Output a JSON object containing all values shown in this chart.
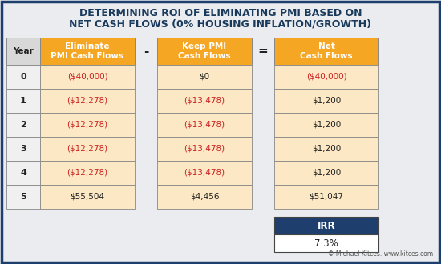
{
  "title_line1": "DETERMINING ROI OF ELIMINATING PMI BASED ON",
  "title_line2": "NET CASH FLOWS (0% HOUSING INFLATION/GROWTH)",
  "title_color": "#1a3a5c",
  "bg_color": "#eaecef",
  "white_bg": "#ffffff",
  "orange_header": "#f5a623",
  "orange_cell": "#fce8c4",
  "dark_blue": "#1e3f6e",
  "gray_header": "#d8d8d8",
  "gray_cell": "#f0f0f0",
  "red_text": "#cc2222",
  "black_text": "#222222",
  "border_color": "#888888",
  "years": [
    "0",
    "1",
    "2",
    "3",
    "4",
    "5"
  ],
  "eliminate_vals": [
    "($40,000)",
    "($12,278)",
    "($12,278)",
    "($12,278)",
    "($12,278)",
    "$55,504"
  ],
  "eliminate_red": [
    true,
    true,
    true,
    true,
    true,
    false
  ],
  "keep_vals": [
    "$0",
    "($13,478)",
    "($13,478)",
    "($13,478)",
    "($13,478)",
    "$4,456"
  ],
  "keep_red": [
    false,
    true,
    true,
    true,
    true,
    false
  ],
  "net_vals": [
    "($40,000)",
    "$1,200",
    "$1,200",
    "$1,200",
    "$1,200",
    "$51,047"
  ],
  "net_red": [
    true,
    false,
    false,
    false,
    false,
    false
  ],
  "irr_label": "IRR",
  "irr_value": "7.3%",
  "footer": "© Michael Kitces. www.kitces.com",
  "col1_header": "Eliminate\nPMI Cash Flows",
  "col2_header": "Keep PMI\nCash Flows",
  "col3_header": "Net\nCash Flows",
  "minus_sign": "-",
  "equals_sign": "="
}
